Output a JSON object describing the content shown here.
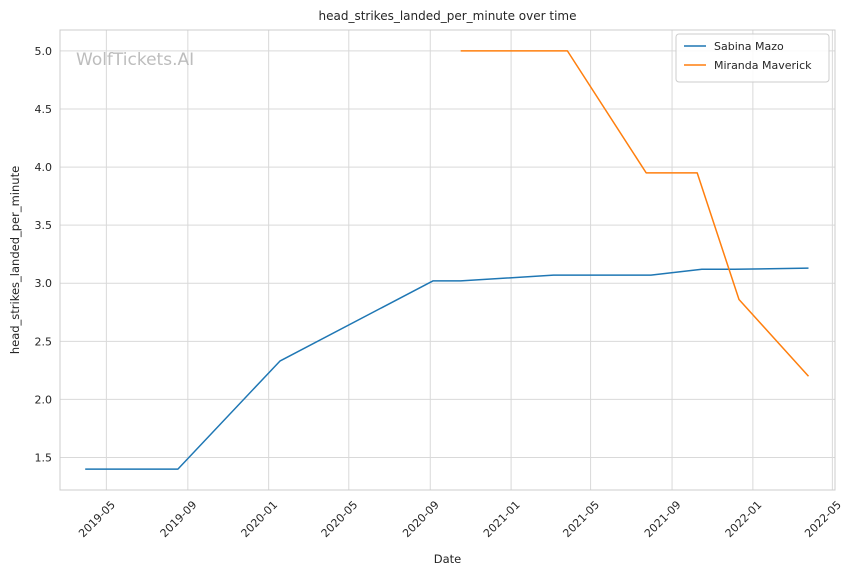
{
  "chart_data": {
    "type": "line",
    "title": "head_strikes_landed_per_minute over time",
    "xlabel": "Date",
    "ylabel": "head_strikes_landed_per_minute",
    "watermark": "WolfTickets.AI",
    "grid": true,
    "legend_position": "top-right",
    "xlim": [
      "2019-02-20",
      "2022-05-05"
    ],
    "ylim": [
      1.22,
      5.18
    ],
    "x_ticks": [
      "2019-05",
      "2019-09",
      "2020-01",
      "2020-05",
      "2020-09",
      "2021-01",
      "2021-05",
      "2021-09",
      "2022-01",
      "2022-05"
    ],
    "y_ticks": [
      "1.5",
      "2.0",
      "2.5",
      "3.0",
      "3.5",
      "4.0",
      "4.5",
      "5.0"
    ],
    "series": [
      {
        "name": "Sabina Mazo",
        "color": "#1f77b4",
        "points": [
          {
            "x": "2019-03-30",
            "y": 1.4
          },
          {
            "x": "2019-08-17",
            "y": 1.4
          },
          {
            "x": "2020-01-18",
            "y": 2.33
          },
          {
            "x": "2020-09-05",
            "y": 3.02
          },
          {
            "x": "2020-10-17",
            "y": 3.02
          },
          {
            "x": "2021-03-06",
            "y": 3.07
          },
          {
            "x": "2021-07-31",
            "y": 3.07
          },
          {
            "x": "2021-10-16",
            "y": 3.12
          },
          {
            "x": "2021-12-04",
            "y": 3.12
          },
          {
            "x": "2022-03-26",
            "y": 3.13
          }
        ]
      },
      {
        "name": "Miranda Maverick",
        "color": "#ff7f0e",
        "points": [
          {
            "x": "2020-10-17",
            "y": 5.0
          },
          {
            "x": "2021-03-27",
            "y": 5.0
          },
          {
            "x": "2021-07-24",
            "y": 3.95
          },
          {
            "x": "2021-10-09",
            "y": 3.95
          },
          {
            "x": "2021-12-11",
            "y": 2.86
          },
          {
            "x": "2022-03-26",
            "y": 2.2
          }
        ]
      }
    ]
  }
}
